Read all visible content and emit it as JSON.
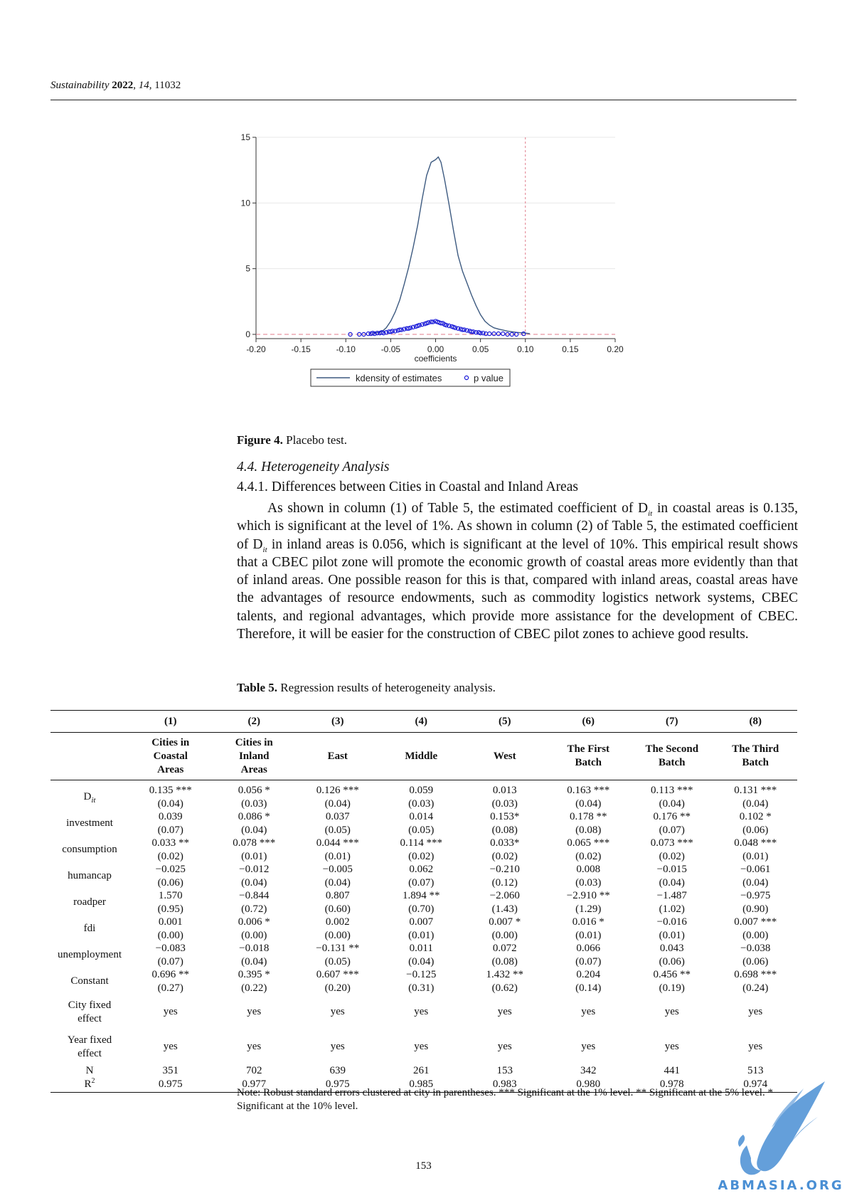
{
  "header": {
    "journal": "Sustainability",
    "year": "2022",
    "volume": "14",
    "article": "11032"
  },
  "figure": {
    "caption_label": "Figure 4.",
    "caption_text": "Placebo test.",
    "chart_data": {
      "type": "line",
      "xlabel": "coefficients",
      "ylabel": "",
      "xlim": [
        -0.2,
        0.2
      ],
      "ylim": [
        0,
        15
      ],
      "x_ticks": [
        "-0.20",
        "-0.15",
        "-0.10",
        "-0.05",
        "0.00",
        "0.05",
        "0.10",
        "0.15",
        "0.20"
      ],
      "y_ticks": [
        "0",
        "5",
        "10",
        "15"
      ],
      "grid": true,
      "legend_placement": "bottom",
      "reference_lines": {
        "vertical_x": 0.1,
        "horizontal_y": 0
      },
      "series": [
        {
          "name": "kdensity of estimates",
          "kind": "line",
          "color": "#3d5a80",
          "x": [
            -0.07,
            -0.06,
            -0.055,
            -0.05,
            -0.045,
            -0.04,
            -0.035,
            -0.03,
            -0.025,
            -0.02,
            -0.015,
            -0.01,
            -0.005,
            0.0,
            0.003,
            0.006,
            0.01,
            0.015,
            0.02,
            0.025,
            0.03,
            0.035,
            0.04,
            0.045,
            0.05,
            0.055,
            0.06,
            0.065,
            0.07,
            0.08,
            0.09,
            0.1,
            0.105
          ],
          "y": [
            0.1,
            0.2,
            0.5,
            1.0,
            1.7,
            2.6,
            3.8,
            5.1,
            6.6,
            8.3,
            10.3,
            12.1,
            13.1,
            13.3,
            13.5,
            13.1,
            11.8,
            9.9,
            7.9,
            6.0,
            4.8,
            3.9,
            3.0,
            2.2,
            1.5,
            1.0,
            0.7,
            0.5,
            0.4,
            0.25,
            0.15,
            0.1,
            0.05
          ]
        },
        {
          "name": "p value",
          "kind": "scatter",
          "color": "#1a1ad8",
          "x": [
            -0.095,
            -0.085,
            -0.08,
            -0.075,
            -0.072,
            -0.07,
            -0.068,
            -0.065,
            -0.062,
            -0.06,
            -0.058,
            -0.055,
            -0.052,
            -0.05,
            -0.048,
            -0.045,
            -0.042,
            -0.04,
            -0.038,
            -0.035,
            -0.032,
            -0.03,
            -0.028,
            -0.025,
            -0.022,
            -0.02,
            -0.018,
            -0.015,
            -0.012,
            -0.01,
            -0.008,
            -0.005,
            -0.003,
            0.0,
            0.002,
            0.004,
            0.006,
            0.008,
            0.01,
            0.012,
            0.015,
            0.018,
            0.02,
            0.022,
            0.025,
            0.028,
            0.03,
            0.032,
            0.035,
            0.038,
            0.04,
            0.042,
            0.045,
            0.048,
            0.05,
            0.053,
            0.056,
            0.06,
            0.065,
            0.07,
            0.075,
            0.08,
            0.085,
            0.09,
            0.098
          ],
          "y": [
            0.0,
            0.0,
            0.0,
            0.05,
            0.05,
            0.1,
            0.05,
            0.1,
            0.1,
            0.15,
            0.1,
            0.15,
            0.2,
            0.2,
            0.25,
            0.25,
            0.3,
            0.35,
            0.35,
            0.4,
            0.45,
            0.45,
            0.5,
            0.55,
            0.6,
            0.65,
            0.7,
            0.75,
            0.8,
            0.85,
            0.9,
            0.95,
            0.95,
            1.0,
            0.95,
            0.9,
            0.85,
            0.85,
            0.75,
            0.7,
            0.65,
            0.6,
            0.55,
            0.5,
            0.45,
            0.4,
            0.35,
            0.35,
            0.3,
            0.25,
            0.2,
            0.2,
            0.15,
            0.15,
            0.1,
            0.1,
            0.05,
            0.05,
            0.05,
            0.05,
            0.05,
            0.0,
            0.0,
            0.0,
            0.05
          ]
        }
      ]
    }
  },
  "section": {
    "title": "4.4. Heterogeneity Analysis",
    "subtitle": "4.4.1. Differences between Cities in Coastal and Inland Areas"
  },
  "paragraph": {
    "p1": "As shown in column (1) of Table 5, the estimated coefficient of D",
    "sub": "it",
    "p2": " in coastal areas is 0.135, which is significant at the level of 1%.  As shown in column (2) of Table 5, the estimated coefficient of D",
    "p3": " in inland areas is 0.056, which is significant at the level of 10%. This empirical result shows that a CBEC pilot zone will promote the economic growth of coastal areas more evidently than that of inland areas. One possible reason for this is that, compared with inland areas, coastal areas have the advantages of resource endowments, such as commodity logistics network systems, CBEC talents, and regional advantages, which provide more assistance for the development of CBEC. Therefore, it will be easier for the construction of CBEC pilot zones to achieve good results."
  },
  "table": {
    "caption_label": "Table 5.",
    "caption_text": "Regression results of heterogeneity analysis.",
    "col_numbers": [
      "(1)",
      "(2)",
      "(3)",
      "(4)",
      "(5)",
      "(6)",
      "(7)",
      "(8)"
    ],
    "col_names": [
      [
        "Cities in",
        "Coastal",
        "Areas"
      ],
      [
        "Cities in",
        "Inland",
        "Areas"
      ],
      [
        "East"
      ],
      [
        "Middle"
      ],
      [
        "West"
      ],
      [
        "The First",
        "Batch"
      ],
      [
        "The Second",
        "Batch"
      ],
      [
        "The Third",
        "Batch"
      ]
    ],
    "rows": [
      {
        "label": "D",
        "label_sub": "it",
        "coef": [
          "0.135 ***",
          "0.056 *",
          "0.126 ***",
          "0.059",
          "0.013",
          "0.163 ***",
          "0.113 ***",
          "0.131 ***"
        ],
        "se": [
          "(0.04)",
          "(0.03)",
          "(0.04)",
          "(0.03)",
          "(0.03)",
          "(0.04)",
          "(0.04)",
          "(0.04)"
        ]
      },
      {
        "label": "investment",
        "coef": [
          "0.039",
          "0.086 *",
          "0.037",
          "0.014",
          "0.153*",
          "0.178 **",
          "0.176 **",
          "0.102 *"
        ],
        "se": [
          "(0.07)",
          "(0.04)",
          "(0.05)",
          "(0.05)",
          "(0.08)",
          "(0.08)",
          "(0.07)",
          "(0.06)"
        ]
      },
      {
        "label": "consumption",
        "coef": [
          "0.033 **",
          "0.078 ***",
          "0.044 ***",
          "0.114 ***",
          "0.033*",
          "0.065 ***",
          "0.073 ***",
          "0.048 ***"
        ],
        "se": [
          "(0.02)",
          "(0.01)",
          "(0.01)",
          "(0.02)",
          "(0.02)",
          "(0.02)",
          "(0.02)",
          "(0.01)"
        ]
      },
      {
        "label": "humancap",
        "coef": [
          "−0.025",
          "−0.012",
          "−0.005",
          "0.062",
          "−0.210",
          "0.008",
          "−0.015",
          "−0.061"
        ],
        "se": [
          "(0.06)",
          "(0.04)",
          "(0.04)",
          "(0.07)",
          "(0.12)",
          "(0.03)",
          "(0.04)",
          "(0.04)"
        ]
      },
      {
        "label": "roadper",
        "coef": [
          "1.570",
          "−0.844",
          "0.807",
          "1.894 **",
          "−2.060",
          "−2.910 **",
          "−1.487",
          "−0.975"
        ],
        "se": [
          "(0.95)",
          "(0.72)",
          "(0.60)",
          "(0.70)",
          "(1.43)",
          "(1.29)",
          "(1.02)",
          "(0.90)"
        ]
      },
      {
        "label": "fdi",
        "coef": [
          "0.001",
          "0.006 *",
          "0.002",
          "0.007",
          "0.007 *",
          "0.016 *",
          "−0.016",
          "0.007 ***"
        ],
        "se": [
          "(0.00)",
          "(0.00)",
          "(0.00)",
          "(0.01)",
          "(0.00)",
          "(0.01)",
          "(0.01)",
          "(0.00)"
        ]
      },
      {
        "label": "unemployment",
        "coef": [
          "−0.083",
          "−0.018",
          "−0.131 **",
          "0.011",
          "0.072",
          "0.066",
          "0.043",
          "−0.038"
        ],
        "se": [
          "(0.07)",
          "(0.04)",
          "(0.05)",
          "(0.04)",
          "(0.08)",
          "(0.07)",
          "(0.06)",
          "(0.06)"
        ]
      },
      {
        "label": "Constant",
        "coef": [
          "0.696 **",
          "0.395 *",
          "0.607 ***",
          "−0.125",
          "1.432 **",
          "0.204",
          "0.456 **",
          "0.698 ***"
        ],
        "se": [
          "(0.27)",
          "(0.22)",
          "(0.20)",
          "(0.31)",
          "(0.62)",
          "(0.14)",
          "(0.19)",
          "(0.24)"
        ]
      }
    ],
    "fixed_effects": [
      {
        "label_l1": "City fixed",
        "label_l2": "effect",
        "values": [
          "yes",
          "yes",
          "yes",
          "yes",
          "yes",
          "yes",
          "yes",
          "yes"
        ]
      },
      {
        "label_l1": "Year fixed",
        "label_l2": "effect",
        "values": [
          "yes",
          "yes",
          "yes",
          "yes",
          "yes",
          "yes",
          "yes",
          "yes"
        ]
      }
    ],
    "n_row": {
      "label": "N",
      "values": [
        "351",
        "702",
        "639",
        "261",
        "153",
        "342",
        "441",
        "513"
      ]
    },
    "r2_row": {
      "label": "R",
      "label_sup": "2",
      "values": [
        "0.975",
        "0.977",
        "0.975",
        "0.985",
        "0.983",
        "0.980",
        "0.978",
        "0.974"
      ]
    },
    "note": "Note: Robust standard errors clustered at city in parentheses. *** Significant at the 1% level. ** Significant at the 5% level. * Significant at the 10% level."
  },
  "page_number": "153",
  "watermark": {
    "text": "ABMASIA.ORG",
    "color": "#4a8fd4"
  }
}
